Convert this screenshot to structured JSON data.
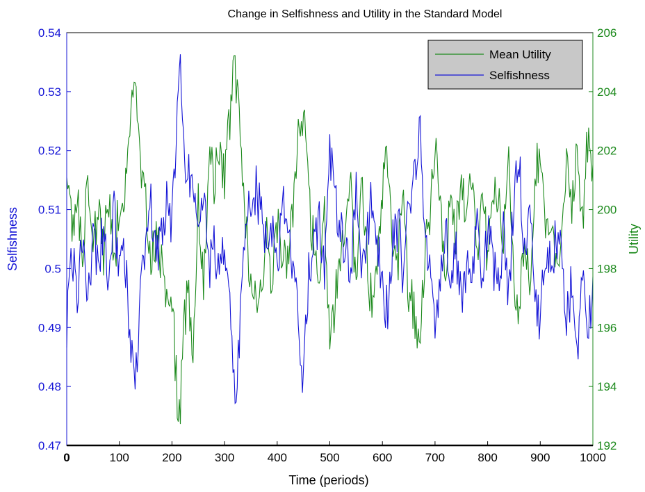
{
  "chart_data": {
    "type": "line",
    "title": "Change in Selfishness and Utility in the Standard Model",
    "xlabel": "Time (periods)",
    "ylabel_left": "Selfishness",
    "ylabel_right": "Utility",
    "xlim": [
      0,
      1000
    ],
    "ylim_left": [
      0.47,
      0.54
    ],
    "ylim_right": [
      192,
      206
    ],
    "x_ticks": [
      "0",
      "100",
      "200",
      "300",
      "400",
      "500",
      "600",
      "700",
      "800",
      "900",
      "1000"
    ],
    "y_left_ticks": [
      "0.47",
      "0.48",
      "0.49",
      "0.5",
      "0.51",
      "0.52",
      "0.53",
      "0.54"
    ],
    "y_right_ticks": [
      "192",
      "194",
      "196",
      "198",
      "200",
      "202",
      "204",
      "206"
    ],
    "grid": false,
    "legend_position": "top-right",
    "colors": {
      "selfishness": "#1414d6",
      "utility": "#1d8a1d",
      "axis": "#000000",
      "legend_bg": "#c8c8c8"
    },
    "series": [
      {
        "name": "Mean Utility",
        "axis": "right",
        "x": [
          0,
          10,
          20,
          30,
          40,
          50,
          60,
          70,
          80,
          90,
          100,
          110,
          120,
          130,
          140,
          150,
          160,
          170,
          180,
          190,
          200,
          210,
          215,
          220,
          230,
          240,
          250,
          260,
          270,
          280,
          290,
          300,
          310,
          320,
          330,
          340,
          350,
          360,
          370,
          380,
          390,
          400,
          410,
          420,
          430,
          440,
          450,
          460,
          470,
          480,
          490,
          500,
          510,
          520,
          530,
          540,
          550,
          560,
          570,
          580,
          590,
          600,
          610,
          620,
          630,
          640,
          650,
          660,
          670,
          680,
          690,
          700,
          710,
          720,
          730,
          740,
          750,
          760,
          770,
          780,
          790,
          800,
          810,
          820,
          830,
          840,
          850,
          860,
          870,
          880,
          890,
          900,
          910,
          920,
          930,
          940,
          950,
          960,
          970,
          980,
          990,
          1000
        ],
        "values": [
          201.5,
          199.3,
          200.8,
          197.6,
          201.4,
          198.9,
          199.9,
          198.6,
          200.6,
          197.8,
          200.5,
          200.1,
          202.8,
          204.1,
          201.3,
          200.0,
          198.0,
          199.0,
          198.3,
          196.6,
          197.4,
          193.5,
          192.8,
          195.6,
          197.2,
          195.4,
          200.4,
          197.4,
          201.9,
          200.8,
          202.0,
          200.9,
          203.1,
          204.9,
          202.4,
          199.4,
          197.5,
          196.8,
          197.0,
          199.0,
          197.7,
          199.7,
          198.1,
          198.2,
          200.0,
          202.2,
          203.5,
          200.4,
          198.7,
          197.8,
          200.0,
          195.8,
          196.8,
          198.5,
          199.3,
          200.7,
          197.2,
          201.7,
          198.4,
          196.7,
          198.4,
          200.9,
          201.7,
          199.1,
          198.3,
          201.2,
          196.6,
          196.9,
          194.9,
          198.4,
          200.0,
          202.6,
          200.4,
          198.0,
          200.7,
          199.3,
          201.3,
          199.6,
          201.1,
          198.0,
          200.9,
          198.1,
          199.9,
          200.8,
          198.8,
          201.7,
          197.5,
          196.3,
          199.6,
          197.5,
          201.1,
          201.9,
          199.1,
          199.8,
          198.6,
          198.9,
          201.7,
          200.4,
          202.1,
          199.3,
          202.4,
          201.2
        ]
      },
      {
        "name": "Selfishness",
        "axis": "left",
        "x": [
          0,
          10,
          20,
          30,
          40,
          50,
          60,
          70,
          80,
          90,
          100,
          110,
          120,
          130,
          140,
          150,
          160,
          170,
          180,
          190,
          200,
          210,
          215,
          220,
          230,
          240,
          250,
          260,
          270,
          280,
          290,
          300,
          310,
          320,
          330,
          340,
          350,
          360,
          370,
          380,
          390,
          400,
          410,
          420,
          430,
          440,
          450,
          460,
          470,
          480,
          490,
          500,
          510,
          520,
          530,
          540,
          550,
          560,
          570,
          580,
          590,
          600,
          610,
          620,
          630,
          640,
          650,
          660,
          670,
          680,
          690,
          700,
          710,
          720,
          730,
          740,
          750,
          760,
          770,
          780,
          790,
          800,
          810,
          820,
          830,
          840,
          850,
          860,
          870,
          880,
          890,
          900,
          910,
          920,
          930,
          940,
          950,
          960,
          970,
          980,
          990,
          1000
        ],
        "values": [
          0.49,
          0.503,
          0.495,
          0.507,
          0.496,
          0.505,
          0.502,
          0.506,
          0.498,
          0.509,
          0.501,
          0.503,
          0.488,
          0.48,
          0.495,
          0.504,
          0.51,
          0.503,
          0.505,
          0.512,
          0.508,
          0.526,
          0.537,
          0.521,
          0.515,
          0.517,
          0.503,
          0.512,
          0.499,
          0.505,
          0.498,
          0.504,
          0.492,
          0.477,
          0.492,
          0.506,
          0.512,
          0.513,
          0.51,
          0.503,
          0.508,
          0.501,
          0.51,
          0.508,
          0.5,
          0.492,
          0.481,
          0.5,
          0.505,
          0.508,
          0.5,
          0.52,
          0.512,
          0.506,
          0.502,
          0.499,
          0.512,
          0.496,
          0.505,
          0.513,
          0.505,
          0.498,
          0.492,
          0.504,
          0.508,
          0.497,
          0.51,
          0.514,
          0.525,
          0.507,
          0.499,
          0.488,
          0.498,
          0.509,
          0.497,
          0.503,
          0.494,
          0.501,
          0.495,
          0.51,
          0.497,
          0.508,
          0.5,
          0.497,
          0.506,
          0.494,
          0.514,
          0.519,
          0.502,
          0.511,
          0.495,
          0.491,
          0.503,
          0.5,
          0.506,
          0.504,
          0.492,
          0.497,
          0.486,
          0.501,
          0.488,
          0.496
        ]
      }
    ]
  }
}
